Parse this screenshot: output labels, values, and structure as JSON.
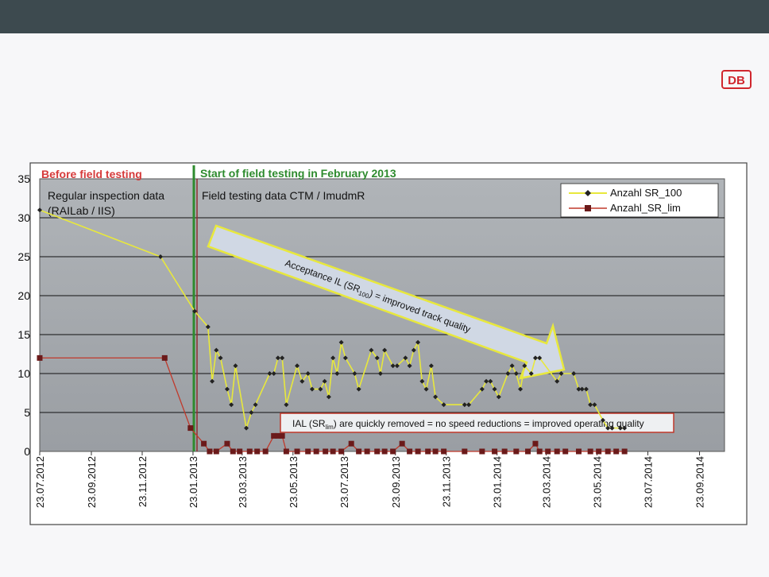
{
  "logo": {
    "text": "DB"
  },
  "chart_data": {
    "type": "line",
    "ylim": [
      0,
      35
    ],
    "yticks": [
      0,
      5,
      10,
      15,
      20,
      25,
      30,
      35
    ],
    "xlim": [
      "2012-07-23",
      "2014-10-23"
    ],
    "xticks": [
      "23.07.2012",
      "23.09.2012",
      "23.11.2012",
      "23.01.2013",
      "23.03.2013",
      "23.05.2013",
      "23.07.2013",
      "23.09.2013",
      "23.11.2013",
      "23.01.2014",
      "23.03.2014",
      "23.05.2014",
      "23.07.2014",
      "23.09.2014"
    ],
    "grid": true,
    "legend_placement": "top-right",
    "annotations": {
      "before_title": "Before field testing",
      "after_title": "Start of field testing in February 2013",
      "regular_data": "Regular inspection data",
      "regular_data_source": "(RAILab / IIS)",
      "field_data": "Field testing data CTM / ImudmR",
      "arrow_pre": "Acceptance IL (SR",
      "arrow_sub": "100",
      "arrow_post": ") = improved track quality",
      "ial_pre": "IAL (SR",
      "ial_sub": "lim",
      "ial_post": ") are quickly removed = no speed reductions = improved operating quality"
    },
    "series": [
      {
        "name": "Anzahl SR_100",
        "color": "#e8e83c",
        "marker": "diamond",
        "points": [
          [
            "2012-07-23",
            31
          ],
          [
            "2012-12-15",
            25
          ],
          [
            "2013-01-25",
            18
          ],
          [
            "2013-02-10",
            16
          ],
          [
            "2013-02-15",
            9
          ],
          [
            "2013-02-20",
            13
          ],
          [
            "2013-02-25",
            12
          ],
          [
            "2013-03-05",
            8
          ],
          [
            "2013-03-10",
            6
          ],
          [
            "2013-03-15",
            11
          ],
          [
            "2013-03-28",
            3
          ],
          [
            "2013-04-03",
            5
          ],
          [
            "2013-04-08",
            6
          ],
          [
            "2013-04-25",
            10
          ],
          [
            "2013-04-30",
            10
          ],
          [
            "2013-05-05",
            12
          ],
          [
            "2013-05-10",
            12
          ],
          [
            "2013-05-15",
            6
          ],
          [
            "2013-05-28",
            11
          ],
          [
            "2013-06-03",
            9
          ],
          [
            "2013-06-10",
            10
          ],
          [
            "2013-06-15",
            8
          ],
          [
            "2013-06-25",
            8
          ],
          [
            "2013-06-30",
            9
          ],
          [
            "2013-07-05",
            7
          ],
          [
            "2013-07-10",
            12
          ],
          [
            "2013-07-15",
            10
          ],
          [
            "2013-07-20",
            14
          ],
          [
            "2013-07-25",
            12
          ],
          [
            "2013-08-05",
            10
          ],
          [
            "2013-08-10",
            8
          ],
          [
            "2013-08-25",
            13
          ],
          [
            "2013-09-01",
            12
          ],
          [
            "2013-09-05",
            10
          ],
          [
            "2013-09-10",
            13
          ],
          [
            "2013-09-20",
            11
          ],
          [
            "2013-09-25",
            11
          ],
          [
            "2013-10-05",
            12
          ],
          [
            "2013-10-10",
            11
          ],
          [
            "2013-10-15",
            13
          ],
          [
            "2013-10-20",
            14
          ],
          [
            "2013-10-25",
            9
          ],
          [
            "2013-10-30",
            8
          ],
          [
            "2013-11-05",
            11
          ],
          [
            "2013-11-10",
            7
          ],
          [
            "2013-11-20",
            6
          ],
          [
            "2013-12-15",
            6
          ],
          [
            "2013-12-20",
            6
          ],
          [
            "2014-01-05",
            8
          ],
          [
            "2014-01-10",
            9
          ],
          [
            "2014-01-15",
            9
          ],
          [
            "2014-01-20",
            8
          ],
          [
            "2014-01-25",
            7
          ],
          [
            "2014-02-05",
            10
          ],
          [
            "2014-02-10",
            11
          ],
          [
            "2014-02-15",
            10
          ],
          [
            "2014-02-20",
            8
          ],
          [
            "2014-02-25",
            11
          ],
          [
            "2014-03-05",
            10
          ],
          [
            "2014-03-10",
            12
          ],
          [
            "2014-03-15",
            12
          ],
          [
            "2014-04-05",
            9
          ],
          [
            "2014-04-10",
            10
          ],
          [
            "2014-04-25",
            10
          ],
          [
            "2014-05-01",
            8
          ],
          [
            "2014-05-05",
            8
          ],
          [
            "2014-05-10",
            8
          ],
          [
            "2014-05-15",
            6
          ],
          [
            "2014-05-20",
            6
          ],
          [
            "2014-05-30",
            4
          ],
          [
            "2014-06-05",
            3
          ],
          [
            "2014-06-10",
            3
          ],
          [
            "2014-06-20",
            3
          ],
          [
            "2014-06-25",
            3
          ]
        ]
      },
      {
        "name": "Anzahl_SR_lim",
        "color": "#c0392b",
        "marker_color": "#6b1a1a",
        "marker": "square",
        "points": [
          [
            "2012-07-23",
            12
          ],
          [
            "2012-12-20",
            12
          ],
          [
            "2013-01-20",
            3
          ],
          [
            "2013-02-05",
            1
          ],
          [
            "2013-02-12",
            0
          ],
          [
            "2013-02-20",
            0
          ],
          [
            "2013-03-05",
            1
          ],
          [
            "2013-03-12",
            0
          ],
          [
            "2013-03-20",
            0
          ],
          [
            "2013-04-01",
            0
          ],
          [
            "2013-04-10",
            0
          ],
          [
            "2013-04-20",
            0
          ],
          [
            "2013-04-30",
            2
          ],
          [
            "2013-05-05",
            2
          ],
          [
            "2013-05-10",
            2
          ],
          [
            "2013-05-15",
            0
          ],
          [
            "2013-05-28",
            0
          ],
          [
            "2013-06-10",
            0
          ],
          [
            "2013-06-20",
            0
          ],
          [
            "2013-07-01",
            0
          ],
          [
            "2013-07-10",
            0
          ],
          [
            "2013-07-20",
            0
          ],
          [
            "2013-08-01",
            1
          ],
          [
            "2013-08-10",
            0
          ],
          [
            "2013-08-20",
            0
          ],
          [
            "2013-09-01",
            0
          ],
          [
            "2013-09-10",
            0
          ],
          [
            "2013-09-20",
            0
          ],
          [
            "2013-10-01",
            1
          ],
          [
            "2013-10-10",
            0
          ],
          [
            "2013-10-20",
            0
          ],
          [
            "2013-11-01",
            0
          ],
          [
            "2013-11-10",
            0
          ],
          [
            "2013-11-20",
            0
          ],
          [
            "2013-12-15",
            0
          ],
          [
            "2014-01-05",
            0
          ],
          [
            "2014-01-20",
            0
          ],
          [
            "2014-02-01",
            0
          ],
          [
            "2014-02-15",
            0
          ],
          [
            "2014-03-01",
            0
          ],
          [
            "2014-03-10",
            1
          ],
          [
            "2014-03-15",
            0
          ],
          [
            "2014-03-25",
            0
          ],
          [
            "2014-04-05",
            0
          ],
          [
            "2014-04-15",
            0
          ],
          [
            "2014-05-01",
            0
          ],
          [
            "2014-05-15",
            0
          ],
          [
            "2014-05-25",
            0
          ],
          [
            "2014-06-05",
            0
          ],
          [
            "2014-06-15",
            0
          ],
          [
            "2014-06-25",
            0
          ]
        ]
      }
    ]
  }
}
